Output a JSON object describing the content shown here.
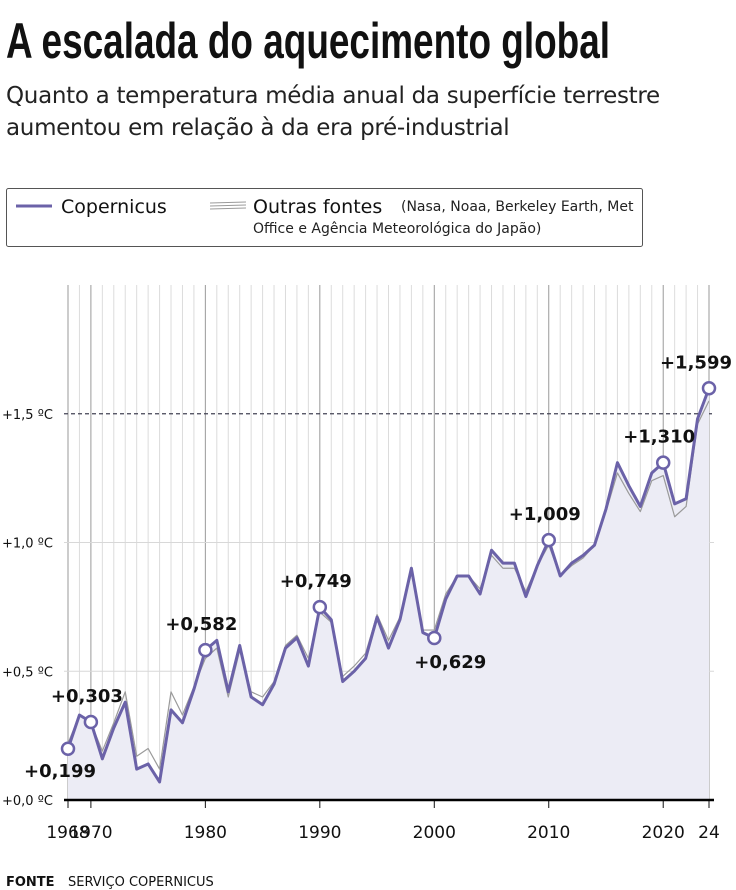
{
  "chart_data": {
    "type": "line",
    "title": "A escalada do aquecimento global",
    "subtitle": "Quanto a temperatura média anual da superfície terrestre aumentou em relação à da era pré-industrial",
    "source_label": "FONTE",
    "source": "SERVIÇO COPERNICUS",
    "x": [
      1968,
      1969,
      1970,
      1971,
      1972,
      1973,
      1974,
      1975,
      1976,
      1977,
      1978,
      1979,
      1980,
      1981,
      1982,
      1983,
      1984,
      1985,
      1986,
      1987,
      1988,
      1989,
      1990,
      1991,
      1992,
      1993,
      1994,
      1995,
      1996,
      1997,
      1998,
      1999,
      2000,
      2001,
      2002,
      2003,
      2004,
      2005,
      2006,
      2007,
      2008,
      2009,
      2010,
      2011,
      2012,
      2013,
      2014,
      2015,
      2016,
      2017,
      2018,
      2019,
      2020,
      2021,
      2022,
      2023,
      2024
    ],
    "series": [
      {
        "name": "Outras fontes",
        "note": "(Nasa, Noaa, Berkeley Earth, Met Office e Agência Meteorológica do Japão)",
        "color": "#9a9a9a",
        "values": [
          0.22,
          0.33,
          0.3,
          0.19,
          0.3,
          0.42,
          0.17,
          0.2,
          0.12,
          0.42,
          0.33,
          0.44,
          0.55,
          0.59,
          0.4,
          0.58,
          0.42,
          0.4,
          0.46,
          0.6,
          0.64,
          0.55,
          0.73,
          0.69,
          0.48,
          0.52,
          0.57,
          0.72,
          0.62,
          0.71,
          0.88,
          0.66,
          0.66,
          0.8,
          0.87,
          0.87,
          0.82,
          0.95,
          0.9,
          0.9,
          0.81,
          0.91,
          0.99,
          0.87,
          0.91,
          0.94,
          0.99,
          1.12,
          1.27,
          1.19,
          1.12,
          1.24,
          1.26,
          1.1,
          1.14,
          1.46,
          1.55
        ]
      },
      {
        "name": "Copernicus",
        "color": "#6b62a8",
        "values": [
          0.199,
          0.33,
          0.303,
          0.16,
          0.28,
          0.38,
          0.12,
          0.14,
          0.07,
          0.35,
          0.3,
          0.43,
          0.582,
          0.62,
          0.42,
          0.6,
          0.4,
          0.37,
          0.45,
          0.59,
          0.63,
          0.52,
          0.749,
          0.7,
          0.46,
          0.5,
          0.55,
          0.71,
          0.59,
          0.7,
          0.9,
          0.65,
          0.629,
          0.78,
          0.87,
          0.87,
          0.8,
          0.97,
          0.92,
          0.92,
          0.79,
          0.91,
          1.009,
          0.87,
          0.92,
          0.95,
          0.99,
          1.13,
          1.31,
          1.22,
          1.14,
          1.27,
          1.31,
          1.15,
          1.17,
          1.48,
          1.599
        ],
        "value_labels": [
          "+0,199",
          null,
          "+0,303",
          null,
          null,
          null,
          null,
          null,
          null,
          null,
          null,
          null,
          "+0,582",
          null,
          null,
          null,
          null,
          null,
          null,
          null,
          null,
          null,
          "+0,749",
          null,
          null,
          null,
          null,
          null,
          null,
          null,
          null,
          null,
          "+0,629",
          null,
          null,
          null,
          null,
          null,
          null,
          null,
          null,
          null,
          "+1,009",
          null,
          null,
          null,
          null,
          null,
          null,
          null,
          null,
          null,
          "+1,310",
          null,
          null,
          null,
          "+1,599"
        ]
      }
    ],
    "xlim": [
      1968,
      2024
    ],
    "xticks": [
      1968,
      1970,
      1980,
      1990,
      2000,
      2010,
      2020,
      {
        "value": 2024,
        "label": "24"
      }
    ],
    "ylim": [
      0,
      2
    ],
    "yticks": [
      {
        "value": 0,
        "label": "+0,0 ºC"
      },
      {
        "value": 0.5,
        "label": "+0,5 ºC"
      },
      {
        "value": 1,
        "label": "+1,0 ºC"
      },
      {
        "value": 1.5,
        "label": "+1,5 ºC"
      }
    ],
    "threshold": 1.5,
    "grid": true,
    "legend": "top-left"
  }
}
